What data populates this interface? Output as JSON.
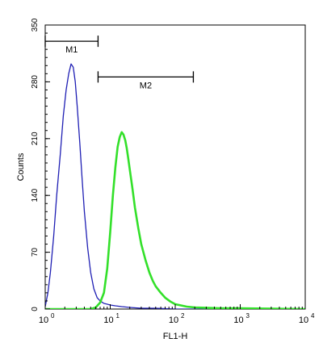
{
  "chart_data": {
    "type": "line",
    "title": "",
    "xlabel": "FL1-H",
    "ylabel": "Counts",
    "x_scale": "log",
    "xlim": [
      1,
      10000
    ],
    "ylim": [
      0,
      350
    ],
    "x_ticks": [
      {
        "value": 1,
        "base": "10",
        "exp": "0"
      },
      {
        "value": 10,
        "base": "10",
        "exp": "1"
      },
      {
        "value": 100,
        "base": "10",
        "exp": "2"
      },
      {
        "value": 1000,
        "base": "10",
        "exp": "3"
      },
      {
        "value": 10000,
        "base": "10",
        "exp": "4"
      }
    ],
    "y_ticks": [
      {
        "value": 0,
        "label": "0"
      },
      {
        "value": 70,
        "label": "70"
      },
      {
        "value": 140,
        "label": "140"
      },
      {
        "value": 210,
        "label": "210"
      },
      {
        "value": 280,
        "label": "280"
      },
      {
        "value": 350,
        "label": "350"
      }
    ],
    "grid": false,
    "series": [
      {
        "color": "#1f1fb4",
        "x": [
          1.0,
          1.1,
          1.2,
          1.35,
          1.5,
          1.7,
          1.9,
          2.1,
          2.3,
          2.5,
          2.7,
          2.9,
          3.1,
          3.4,
          3.7,
          4.0,
          4.5,
          5.0,
          5.6,
          6.3,
          7.0,
          8.0,
          9.0,
          10,
          12,
          15,
          20,
          30,
          50,
          100,
          1000,
          10000
        ],
        "y": [
          3,
          20,
          45,
          90,
          140,
          190,
          238,
          270,
          290,
          302,
          298,
          280,
          250,
          205,
          160,
          120,
          75,
          45,
          25,
          14,
          10,
          7,
          6,
          5,
          4,
          3,
          2,
          1,
          1,
          0,
          0,
          0
        ]
      },
      {
        "color": "#33e02a",
        "x": [
          1,
          5,
          6,
          7,
          8,
          9,
          10,
          11,
          12,
          13,
          14,
          15,
          16,
          17,
          18,
          19,
          20,
          22,
          24,
          27,
          30,
          35,
          40,
          45,
          50,
          60,
          70,
          85,
          100,
          150,
          200,
          500,
          1000,
          10000
        ],
        "y": [
          0,
          0,
          2,
          8,
          20,
          50,
          95,
          140,
          175,
          200,
          212,
          218,
          215,
          208,
          198,
          185,
          172,
          148,
          125,
          100,
          80,
          60,
          45,
          35,
          28,
          20,
          14,
          9,
          6,
          3,
          2,
          1,
          1,
          0
        ]
      }
    ],
    "markers": [
      {
        "label": "M1",
        "x_start": 1,
        "x_end": 6.5,
        "y": 330
      },
      {
        "label": "M2",
        "x_start": 6.5,
        "x_end": 190,
        "y": 286
      }
    ]
  }
}
